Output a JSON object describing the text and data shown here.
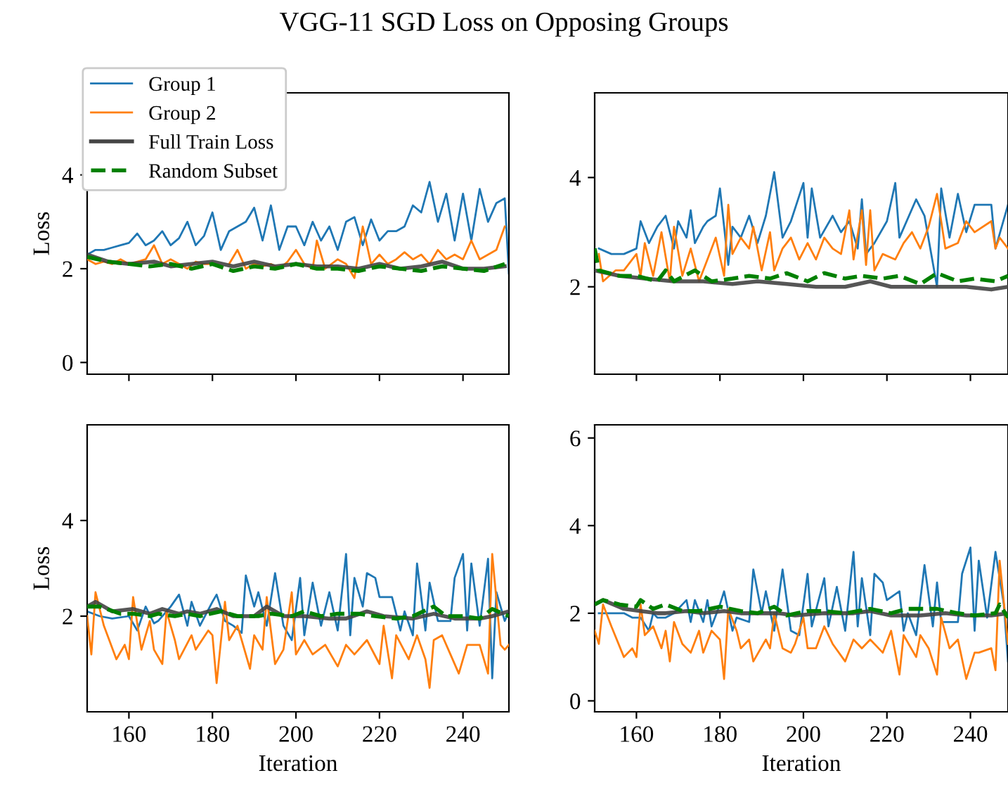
{
  "chart_data": [
    {
      "type": "line",
      "title": "VGG-11 SGD Loss on Opposing Groups",
      "ylabel": "Loss",
      "xlim": [
        150,
        251
      ],
      "ylim": [
        -0.25,
        5.75
      ],
      "xticks": [
        160,
        180,
        200,
        220,
        240
      ],
      "yticks": [
        0,
        2,
        4
      ],
      "tick_labels": "y",
      "legend": "top left",
      "grid": false,
      "series": [
        {
          "name": "Group 1",
          "color": "#1f77b4",
          "x": [
            150,
            152,
            154,
            156,
            158,
            160,
            162,
            164,
            166,
            168,
            170,
            172,
            174,
            176,
            178,
            180,
            182,
            184,
            186,
            188,
            190,
            192,
            194,
            196,
            198,
            200,
            202,
            204,
            206,
            208,
            210,
            212,
            214,
            216,
            218,
            220,
            222,
            224,
            226,
            228,
            230,
            232,
            234,
            236,
            238,
            240,
            242,
            244,
            246,
            248,
            250,
            251
          ],
          "values": [
            2.3,
            2.4,
            2.4,
            2.45,
            2.5,
            2.55,
            2.75,
            2.5,
            2.6,
            2.8,
            2.5,
            2.65,
            3.0,
            2.5,
            2.7,
            3.2,
            2.4,
            2.8,
            2.9,
            3.0,
            3.3,
            2.6,
            3.35,
            2.4,
            2.9,
            2.9,
            2.5,
            3.0,
            2.6,
            2.9,
            2.4,
            3.0,
            3.1,
            2.5,
            3.05,
            2.6,
            2.8,
            2.8,
            2.9,
            3.35,
            3.2,
            3.85,
            3.0,
            3.6,
            2.6,
            3.6,
            2.6,
            3.7,
            3.0,
            3.4,
            3.5,
            1.9
          ]
        },
        {
          "name": "Group 2",
          "color": "#ff7f0e",
          "x": [
            150,
            152,
            154,
            156,
            158,
            160,
            162,
            164,
            166,
            168,
            170,
            172,
            174,
            176,
            178,
            180,
            182,
            184,
            186,
            188,
            190,
            192,
            194,
            196,
            198,
            200,
            202,
            204,
            205,
            207,
            210,
            212,
            214,
            216,
            218,
            220,
            222,
            224,
            226,
            228,
            230,
            232,
            234,
            236,
            238,
            240,
            242,
            244,
            246,
            248,
            250
          ],
          "values": [
            2.2,
            2.1,
            2.15,
            2.1,
            2.2,
            2.1,
            2.15,
            2.2,
            2.5,
            2.1,
            2.2,
            2.1,
            2.0,
            2.15,
            2.1,
            2.1,
            null,
            2.1,
            2.4,
            2.0,
            2.1,
            2.05,
            2.1,
            2.0,
            2.15,
            2.4,
            2.1,
            2.0,
            2.6,
            2.0,
            2.2,
            2.1,
            1.8,
            2.9,
            2.1,
            2.3,
            2.1,
            2.2,
            2.35,
            2.2,
            2.3,
            2.1,
            2.4,
            2.2,
            2.3,
            2.2,
            2.6,
            2.2,
            2.3,
            2.4,
            2.9
          ]
        },
        {
          "name": "Full Train Loss",
          "color": "#444444",
          "line_style": "solid",
          "x": [
            150,
            155,
            160,
            166,
            170,
            175,
            180,
            185,
            190,
            195,
            200,
            205,
            210,
            215,
            220,
            225,
            230,
            235,
            240,
            245,
            250
          ],
          "values": [
            2.3,
            2.15,
            2.1,
            2.15,
            2.05,
            2.1,
            2.15,
            2.05,
            2.15,
            2.05,
            2.1,
            2.05,
            2.05,
            2.0,
            2.1,
            2.0,
            2.05,
            2.15,
            2.0,
            2.0,
            2.05
          ]
        },
        {
          "name": "Random Subset",
          "color": "#008000",
          "line_style": "dashed",
          "x": [
            150,
            155,
            160,
            165,
            170,
            175,
            180,
            185,
            190,
            195,
            200,
            205,
            210,
            215,
            220,
            225,
            230,
            235,
            240,
            245,
            250
          ],
          "values": [
            2.25,
            2.15,
            2.1,
            2.05,
            2.1,
            2.0,
            2.1,
            1.95,
            2.05,
            2.0,
            2.1,
            2.0,
            2.0,
            1.95,
            2.05,
            2.0,
            1.95,
            2.05,
            2.0,
            1.95,
            2.1
          ]
        }
      ]
    },
    {
      "type": "line",
      "xlim": [
        150,
        249
      ],
      "ylim": [
        0.4,
        5.55
      ],
      "xticks": [
        160,
        180,
        200,
        220,
        240
      ],
      "yticks": [
        2,
        4
      ],
      "tick_labels": "y",
      "grid": false,
      "series": [
        {
          "color": "#1f77b4",
          "x": [
            151,
            154,
            157,
            160,
            161,
            163,
            165,
            167,
            169,
            170,
            172,
            173,
            174,
            176,
            177,
            179,
            180,
            182,
            183,
            185,
            187,
            189,
            191,
            193,
            195,
            197,
            200,
            201,
            202,
            204,
            207,
            209,
            211,
            213,
            214,
            215,
            217,
            220,
            222,
            223,
            227,
            229,
            232,
            233,
            235,
            237,
            239,
            241,
            245,
            246,
            249
          ],
          "values": [
            2.7,
            2.6,
            2.6,
            2.7,
            3.2,
            2.8,
            3.1,
            3.3,
            2.7,
            3.2,
            2.9,
            3.4,
            2.8,
            3.1,
            3.2,
            3.3,
            3.8,
            2.4,
            3.1,
            2.9,
            3.3,
            2.8,
            3.3,
            4.1,
            2.9,
            3.2,
            3.9,
            2.9,
            3.8,
            2.9,
            3.3,
            3.0,
            3.2,
            2.7,
            3.6,
            2.6,
            2.8,
            3.2,
            3.9,
            2.9,
            3.6,
            3.3,
            2.0,
            3.8,
            2.9,
            3.7,
            3.0,
            3.5,
            3.5,
            2.7,
            3.5
          ]
        },
        {
          "color": "#ff7f0e",
          "x": [
            151,
            152,
            155,
            157,
            160,
            161,
            162,
            164,
            166,
            168,
            169,
            171,
            173,
            175,
            177,
            179,
            181,
            182,
            183,
            185,
            187,
            188,
            190,
            192,
            193,
            195,
            197,
            199,
            201,
            203,
            205,
            207,
            209,
            211,
            212,
            214,
            215,
            216,
            217,
            219,
            222,
            224,
            226,
            228,
            230,
            232,
            234,
            237,
            239,
            241,
            245,
            246,
            247,
            249
          ],
          "values": [
            2.6,
            2.1,
            2.3,
            2.3,
            2.6,
            2.2,
            2.8,
            2.2,
            3.0,
            2.1,
            3.1,
            2.2,
            2.7,
            2.1,
            2.5,
            2.9,
            2.2,
            3.5,
            2.6,
            2.9,
            2.7,
            3.1,
            2.3,
            3.0,
            2.3,
            2.7,
            2.9,
            2.5,
            2.8,
            2.5,
            2.9,
            2.7,
            2.6,
            3.4,
            2.5,
            3.4,
            2.4,
            3.4,
            2.3,
            2.6,
            2.5,
            2.8,
            3.0,
            2.7,
            3.1,
            3.7,
            2.7,
            2.8,
            3.2,
            3.0,
            3.2,
            2.7,
            2.9,
            2.7
          ]
        },
        {
          "color": "#444444",
          "line_style": "solid",
          "x": [
            150,
            156,
            162,
            169,
            176,
            183,
            189,
            196,
            203,
            210,
            216,
            221,
            228,
            234,
            239,
            245,
            249
          ],
          "values": [
            2.3,
            2.2,
            2.15,
            2.1,
            2.1,
            2.05,
            2.1,
            2.05,
            2.0,
            2.0,
            2.1,
            2.0,
            2.0,
            2.0,
            2.0,
            1.95,
            2.0
          ]
        },
        {
          "color": "#008000",
          "line_style": "dashed",
          "x": [
            150,
            151,
            156,
            160,
            165,
            167,
            169,
            174,
            178,
            183,
            187,
            192,
            196,
            201,
            205,
            210,
            214,
            219,
            223,
            228,
            232,
            237,
            241,
            246,
            249
          ],
          "values": [
            2.7,
            2.3,
            2.2,
            2.2,
            2.1,
            2.3,
            2.1,
            2.3,
            2.1,
            2.15,
            2.2,
            2.15,
            2.25,
            2.1,
            2.25,
            2.15,
            2.2,
            2.15,
            2.2,
            2.05,
            2.25,
            2.1,
            2.15,
            2.1,
            2.2
          ]
        }
      ]
    },
    {
      "type": "line",
      "xlabel": "Iteration",
      "ylabel": "Loss",
      "xlim": [
        150,
        251
      ],
      "ylim": [
        0,
        6
      ],
      "xticks": [
        160,
        180,
        200,
        220,
        240
      ],
      "yticks": [
        2,
        4
      ],
      "grid": false,
      "series": [
        {
          "color": "#1f77b4",
          "x": [
            150,
            153,
            156,
            160,
            162,
            164,
            166,
            167,
            170,
            172,
            174,
            175,
            177,
            180,
            181,
            183,
            185,
            187,
            188,
            190,
            191,
            193,
            195,
            197,
            199,
            201,
            202,
            204,
            206,
            208,
            210,
            212,
            213,
            214,
            216,
            217,
            219,
            220,
            223,
            225,
            226,
            228,
            229,
            231,
            232,
            234,
            237,
            238,
            240,
            241,
            242,
            244,
            246,
            247,
            248,
            250,
            251
          ],
          "values": [
            2.1,
            2.0,
            1.95,
            2.0,
            1.7,
            2.2,
            1.85,
            1.9,
            2.2,
            2.45,
            1.8,
            2.3,
            1.8,
            2.3,
            2.45,
            1.9,
            1.8,
            1.65,
            2.85,
            2.2,
            2.5,
            1.8,
            2.9,
            1.8,
            1.5,
            2.8,
            1.6,
            2.7,
            1.8,
            2.5,
            1.7,
            3.3,
            1.6,
            2.8,
            2.2,
            2.9,
            2.8,
            2.4,
            2.4,
            1.7,
            2.1,
            1.6,
            3.1,
            1.7,
            2.7,
            1.9,
            1.9,
            2.8,
            3.3,
            1.7,
            3.1,
            1.8,
            3.2,
            0.7,
            2.5,
            1.9,
            2.1
          ]
        },
        {
          "color": "#ff7f0e",
          "x": [
            150,
            151,
            152,
            154,
            157,
            159,
            160,
            161,
            163,
            165,
            166,
            168,
            169,
            171,
            172,
            175,
            176,
            179,
            180,
            181,
            183,
            184,
            186,
            187,
            189,
            190,
            192,
            193,
            195,
            197,
            199,
            200,
            202,
            204,
            207,
            210,
            212,
            214,
            217,
            220,
            221,
            223,
            224,
            227,
            229,
            231,
            232,
            233,
            235,
            237,
            239,
            241,
            244,
            246,
            247,
            249,
            250,
            251
          ],
          "values": [
            2.0,
            1.2,
            2.5,
            1.8,
            1.1,
            1.4,
            1.1,
            2.4,
            1.3,
            1.9,
            1.3,
            1.0,
            2.1,
            1.5,
            1.1,
            1.6,
            1.3,
            1.7,
            1.6,
            0.6,
            2.3,
            1.5,
            1.8,
            1.5,
            0.9,
            1.6,
            1.3,
            2.4,
            1.0,
            1.3,
            2.5,
            1.2,
            1.5,
            1.2,
            1.4,
            0.95,
            1.4,
            1.2,
            1.5,
            1.0,
            1.8,
            0.7,
            1.6,
            1.1,
            1.6,
            1.1,
            0.5,
            1.5,
            1.6,
            1.2,
            0.8,
            1.4,
            1.4,
            0.8,
            3.3,
            1.4,
            1.3,
            1.4
          ]
        },
        {
          "color": "#444444",
          "line_style": "solid",
          "x": [
            150,
            152,
            156,
            161,
            165,
            168,
            172,
            174,
            177,
            181,
            185,
            190,
            193,
            197,
            202,
            208,
            212,
            217,
            221,
            228,
            233,
            238,
            244,
            247,
            251
          ],
          "values": [
            2.2,
            2.3,
            2.1,
            2.15,
            2.05,
            2.15,
            2.05,
            2.1,
            2.05,
            2.15,
            2.0,
            2.0,
            2.2,
            2.0,
            2.0,
            1.95,
            1.95,
            2.1,
            2.0,
            1.95,
            2.05,
            1.95,
            1.95,
            2.0,
            2.1
          ]
        },
        {
          "color": "#008000",
          "line_style": "dashed",
          "x": [
            150,
            153,
            158,
            161,
            165,
            167,
            171,
            174,
            177,
            182,
            186,
            191,
            194,
            199,
            202,
            206,
            210,
            215,
            219,
            224,
            228,
            233,
            236,
            240,
            244,
            247,
            251
          ],
          "values": [
            2.2,
            2.2,
            2.05,
            2.05,
            2.0,
            2.05,
            2.0,
            2.05,
            2.0,
            2.1,
            2.0,
            2.0,
            2.05,
            2.0,
            2.1,
            2.0,
            2.05,
            2.05,
            2.0,
            1.95,
            2.0,
            2.2,
            2.0,
            2.0,
            1.95,
            2.15,
            2.0
          ]
        }
      ]
    },
    {
      "type": "line",
      "xlabel": "Iteration",
      "xlim": [
        150,
        249
      ],
      "ylim": [
        -0.25,
        6.3
      ],
      "xticks": [
        160,
        180,
        200,
        220,
        240
      ],
      "yticks": [
        0,
        2,
        4,
        6
      ],
      "grid": false,
      "series": [
        {
          "color": "#1f77b4",
          "x": [
            151,
            153,
            157,
            159,
            161,
            163,
            164,
            165,
            167,
            169,
            172,
            173,
            174,
            176,
            177,
            178,
            180,
            181,
            183,
            184,
            187,
            188,
            190,
            191,
            193,
            195,
            197,
            199,
            201,
            202,
            205,
            206,
            208,
            210,
            212,
            213,
            214,
            216,
            217,
            219,
            220,
            223,
            224,
            225,
            227,
            229,
            231,
            232,
            233,
            237,
            238,
            240,
            241,
            242,
            244,
            246,
            248,
            249
          ],
          "values": [
            2.0,
            2.0,
            2.0,
            1.9,
            1.9,
            1.6,
            2.0,
            1.9,
            1.9,
            2.0,
            2.3,
            1.8,
            2.3,
            1.8,
            2.3,
            1.7,
            2.2,
            2.5,
            1.6,
            1.9,
            1.8,
            3.0,
            2.0,
            2.5,
            1.6,
            3.0,
            1.6,
            1.5,
            2.9,
            1.7,
            2.8,
            1.7,
            2.6,
            1.6,
            3.4,
            1.7,
            2.8,
            1.5,
            2.9,
            2.7,
            2.3,
            2.5,
            1.6,
            2.0,
            1.5,
            3.1,
            1.7,
            2.7,
            1.8,
            1.8,
            2.9,
            3.5,
            1.6,
            3.2,
            1.9,
            3.4,
            2.2,
            0.9
          ]
        },
        {
          "color": "#ff7f0e",
          "x": [
            150,
            151,
            152,
            154,
            157,
            159,
            160,
            161,
            162,
            164,
            166,
            167,
            168,
            169,
            171,
            173,
            175,
            176,
            178,
            180,
            181,
            182,
            184,
            185,
            187,
            188,
            191,
            192,
            193,
            195,
            197,
            198,
            200,
            201,
            203,
            205,
            207,
            210,
            212,
            214,
            216,
            219,
            221,
            223,
            224,
            227,
            228,
            230,
            232,
            233,
            235,
            237,
            239,
            241,
            242,
            245,
            246,
            247,
            249
          ],
          "values": [
            1.6,
            1.3,
            2.2,
            1.7,
            1.0,
            1.2,
            1.0,
            2.2,
            1.5,
            1.7,
            1.2,
            1.6,
            0.9,
            1.8,
            1.3,
            1.1,
            1.6,
            1.1,
            1.6,
            1.4,
            0.5,
            2.1,
            1.6,
            1.2,
            1.4,
            0.9,
            1.4,
            1.2,
            2.0,
            1.2,
            1.1,
            1.3,
            1.9,
            1.2,
            1.2,
            1.7,
            1.3,
            0.9,
            1.4,
            1.2,
            1.4,
            1.1,
            1.6,
            0.6,
            1.5,
            1.0,
            1.5,
            1.2,
            0.6,
            1.9,
            1.2,
            1.4,
            0.5,
            1.1,
            1.1,
            1.2,
            0.7,
            3.2,
            1.3
          ]
        },
        {
          "color": "#444444",
          "line_style": "solid",
          "x": [
            150,
            152,
            157,
            161,
            165,
            167,
            172,
            176,
            181,
            185,
            194,
            198,
            205,
            212,
            216,
            221,
            228,
            234,
            239,
            245,
            249
          ],
          "values": [
            2.2,
            2.3,
            2.1,
            2.05,
            2.0,
            2.0,
            2.05,
            2.0,
            2.05,
            2.0,
            2.0,
            1.95,
            2.0,
            2.0,
            2.05,
            1.95,
            1.95,
            2.0,
            1.95,
            1.95,
            2.0
          ]
        },
        {
          "color": "#008000",
          "line_style": "dashed",
          "x": [
            150,
            152,
            156,
            160,
            161,
            164,
            167,
            171,
            175,
            180,
            185,
            189,
            193,
            196,
            201,
            205,
            210,
            216,
            221,
            225,
            232,
            237,
            241,
            246,
            247,
            249
          ],
          "values": [
            2.2,
            2.3,
            2.2,
            2.15,
            2.3,
            2.1,
            2.2,
            2.05,
            2.05,
            2.15,
            2.05,
            2.0,
            2.15,
            1.95,
            2.05,
            2.05,
            2.0,
            2.1,
            2.0,
            2.1,
            2.1,
            2.0,
            1.95,
            2.0,
            2.2,
            1.9
          ]
        }
      ]
    }
  ]
}
